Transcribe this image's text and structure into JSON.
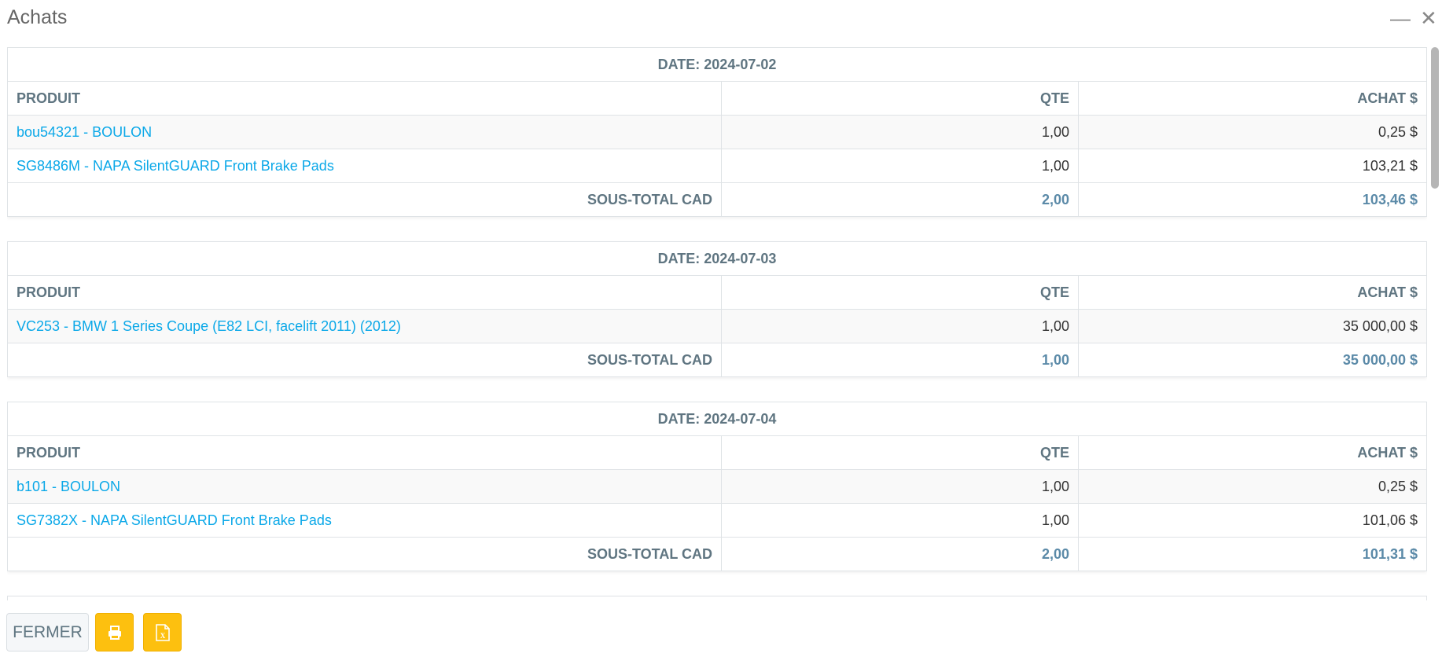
{
  "window": {
    "title": "Achats",
    "minimize_icon": "minimize-icon",
    "close_icon": "close-icon"
  },
  "columns": {
    "product": "PRODUIT",
    "qty": "QTE",
    "purchase": "ACHAT $"
  },
  "groups": [
    {
      "date": "DATE: 2024-07-02",
      "rows": [
        {
          "product": "bou54321 - BOULON",
          "qty": "1,00",
          "purchase": "0,25 $"
        },
        {
          "product": "SG8486M - NAPA SilentGUARD Front Brake Pads",
          "qty": "1,00",
          "purchase": "103,21 $"
        }
      ],
      "subtotal": {
        "label": "SOUS-TOTAL CAD",
        "qty": "2,00",
        "purchase": "103,46 $"
      }
    },
    {
      "date": "DATE: 2024-07-03",
      "rows": [
        {
          "product": "VC253 - BMW 1 Series Coupe (E82 LCI, facelift 2011) (2012)",
          "qty": "1,00",
          "purchase": "35 000,00 $"
        }
      ],
      "subtotal": {
        "label": "SOUS-TOTAL CAD",
        "qty": "1,00",
        "purchase": "35 000,00 $"
      }
    },
    {
      "date": "DATE: 2024-07-04",
      "rows": [
        {
          "product": "b101 - BOULON",
          "qty": "1,00",
          "purchase": "0,25 $"
        },
        {
          "product": "SG7382X - NAPA SilentGUARD Front Brake Pads",
          "qty": "1,00",
          "purchase": "101,06 $"
        }
      ],
      "subtotal": {
        "label": "SOUS-TOTAL CAD",
        "qty": "2,00",
        "purchase": "101,31 $"
      }
    },
    {
      "date": "",
      "rows": [],
      "subtotal": null
    }
  ],
  "footer": {
    "close_label": "FERMER",
    "print_icon": "print-icon",
    "excel_icon": "file-excel-icon"
  },
  "colors": {
    "accent": "#fdc00f",
    "link": "#0ba8e8",
    "header_text": "#5f7581"
  }
}
